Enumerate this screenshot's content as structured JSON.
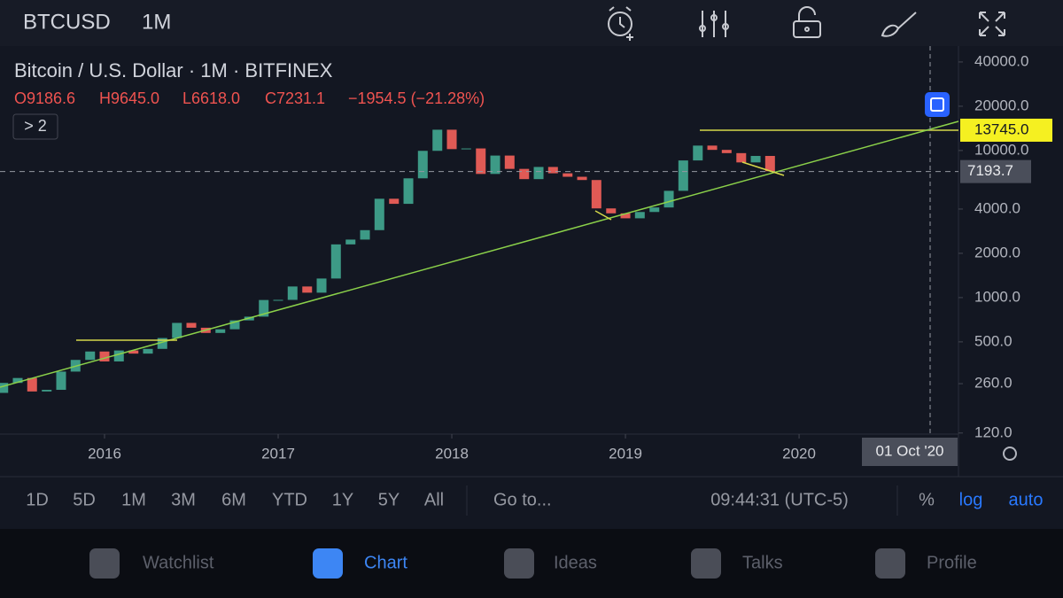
{
  "header": {
    "symbol": "BTCUSD",
    "interval": "1M"
  },
  "legend": {
    "title": "Bitcoin / U.S. Dollar · 1M · BITFINEX",
    "open": "O9186.6",
    "high": "H9645.0",
    "low": "L6618.0",
    "close": "C7231.1",
    "change": "−1954.5 (−21.28%)",
    "indicators": "> 2"
  },
  "chart_data": {
    "type": "candlestick",
    "log": true,
    "x": [
      2015.417,
      2015.5,
      2015.583,
      2015.667,
      2015.75,
      2015.833,
      2015.917,
      2016,
      2016.083,
      2016.167,
      2016.25,
      2016.333,
      2016.417,
      2016.5,
      2016.583,
      2016.667,
      2016.75,
      2016.833,
      2016.917,
      2017,
      2017.083,
      2017.167,
      2017.25,
      2017.333,
      2017.417,
      2017.5,
      2017.583,
      2017.667,
      2017.75,
      2017.833,
      2017.917,
      2018,
      2018.083,
      2018.167,
      2018.25,
      2018.333,
      2018.417,
      2018.5,
      2018.583,
      2018.667,
      2018.75,
      2018.833,
      2018.917,
      2019,
      2019.083,
      2019.167,
      2019.25,
      2019.333,
      2019.417,
      2019.5,
      2019.583,
      2019.667,
      2019.75,
      2019.833
    ],
    "open": [
      225,
      263,
      284,
      230,
      236,
      314,
      377,
      430,
      368,
      437,
      416,
      448,
      531,
      673,
      624,
      575,
      609,
      700,
      742,
      963,
      965,
      1190,
      1080,
      1348,
      2300,
      2480,
      2875,
      4700,
      4340,
      6470,
      9950,
      13850,
      10220,
      10330,
      6930,
      9240,
      7500,
      6390,
      7730,
      7000,
      6630,
      6300,
      4040,
      3740,
      3460,
      3820,
      4100,
      5320,
      8560,
      10800,
      10100,
      9600,
      8300,
      9186.6
    ],
    "close": [
      263,
      284,
      230,
      236,
      314,
      377,
      430,
      368,
      437,
      416,
      448,
      531,
      673,
      624,
      575,
      609,
      700,
      742,
      963,
      965,
      1190,
      1080,
      1348,
      2300,
      2480,
      2875,
      4700,
      4340,
      6470,
      9950,
      13850,
      10220,
      10330,
      6930,
      9240,
      7500,
      6390,
      7730,
      7000,
      6630,
      6300,
      4040,
      3740,
      3460,
      3820,
      4100,
      5320,
      8560,
      10800,
      10100,
      9600,
      8300,
      9186.6,
      7231.1
    ],
    "up_color": "#3d9a86",
    "down_color": "#e05a55",
    "xlim": [
      2015.398,
      2020.918
    ],
    "xticks": [
      2016,
      2017,
      2018,
      2019,
      2020
    ],
    "ylim": [
      118,
      51300
    ],
    "yticks": [
      {
        "value": 40000,
        "label": "40000.0"
      },
      {
        "value": 20000,
        "label": "20000.0"
      },
      {
        "value": 10000,
        "label": "10000.0"
      },
      {
        "value": 4000,
        "label": "4000.0"
      },
      {
        "value": 2000,
        "label": "2000.0"
      },
      {
        "value": 1000,
        "label": "1000.0"
      },
      {
        "value": 500,
        "label": "500.0"
      },
      {
        "value": 260,
        "label": "260.0"
      },
      {
        "value": 120,
        "label": "120.0"
      }
    ],
    "level": {
      "value": 13745,
      "label": "13745.0"
    },
    "price_line": 7193.7,
    "crosshair_label": "01 Oct '20"
  },
  "toolbar": {
    "ranges": [
      "1D",
      "5D",
      "1M",
      "3M",
      "6M",
      "YTD",
      "1Y",
      "5Y",
      "All"
    ],
    "goto": "Go to...",
    "time": "09:44:31 (UTC-5)",
    "percent": "%",
    "log": "log",
    "auto": "auto"
  },
  "tabs": [
    "Watchlist",
    "Chart",
    "Ideas",
    "Talks",
    "Profile"
  ]
}
